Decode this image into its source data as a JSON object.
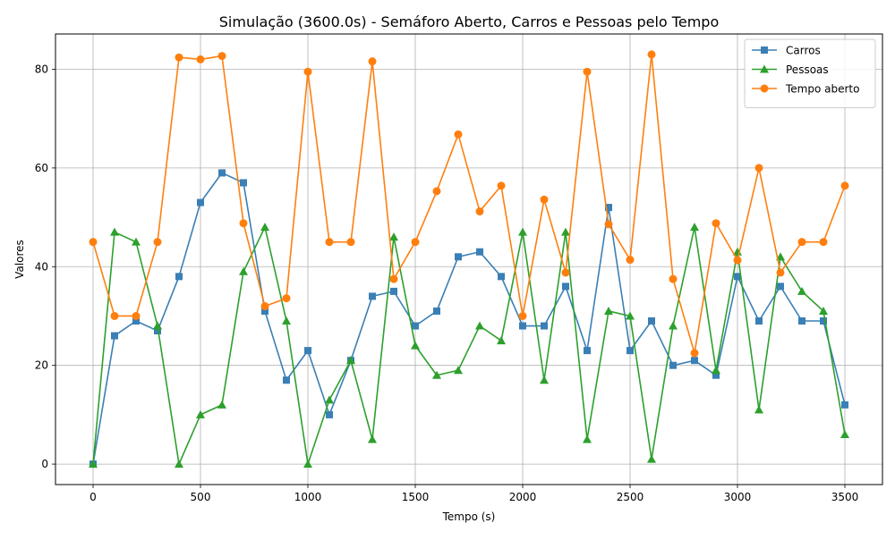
{
  "chart_data": {
    "type": "line",
    "title": "Simulação (3600.0s) - Semáforo Aberto, Carros e Pessoas pelo Tempo",
    "xlabel": "Tempo (s)",
    "ylabel": "Valores",
    "xlim": [
      -175,
      3675
    ],
    "ylim": [
      -4.15,
      87.15
    ],
    "xticks": [
      0,
      500,
      1000,
      1500,
      2000,
      2500,
      3000,
      3500
    ],
    "yticks": [
      0,
      20,
      40,
      60,
      80
    ],
    "grid": true,
    "legend_position": "top-right",
    "x": [
      0,
      100,
      200,
      300,
      400,
      500,
      600,
      700,
      800,
      900,
      1000,
      1100,
      1200,
      1300,
      1400,
      1500,
      1600,
      1700,
      1800,
      1900,
      2000,
      2100,
      2200,
      2300,
      2400,
      2500,
      2600,
      2700,
      2800,
      2900,
      3000,
      3100,
      3200,
      3300,
      3400,
      3500
    ],
    "series": [
      {
        "name": "Carros",
        "color": "#3a7fb5",
        "marker": "square",
        "values": [
          0,
          26,
          29,
          27,
          38,
          53,
          59,
          57,
          31,
          17,
          23,
          10,
          21,
          34,
          35,
          28,
          31,
          42,
          43,
          38,
          28,
          28,
          36,
          23,
          52,
          23,
          29,
          20,
          21,
          18,
          38,
          29,
          36,
          29,
          29,
          12
        ]
      },
      {
        "name": "Pessoas",
        "color": "#2ca02c",
        "marker": "triangle",
        "values": [
          0,
          47,
          45,
          28,
          0,
          10,
          12,
          39,
          48,
          29,
          0,
          13,
          21,
          5,
          46,
          24,
          18,
          19,
          28,
          25,
          47,
          17,
          47,
          5,
          31,
          30,
          1,
          28,
          48,
          19,
          43,
          11,
          42,
          35,
          31,
          6
        ]
      },
      {
        "name": "Tempo aberto",
        "color": "#ff7f0e",
        "marker": "circle",
        "values": [
          45,
          30,
          30,
          45,
          82.4,
          82,
          82.7,
          48.8,
          32,
          33.6,
          79.5,
          45,
          45,
          81.6,
          37.5,
          45,
          55.3,
          66.8,
          51.2,
          56.4,
          30,
          53.6,
          38.8,
          79.5,
          48.6,
          41.4,
          83,
          37.5,
          22.5,
          48.8,
          41.3,
          60,
          38.8,
          45,
          45,
          56.4
        ]
      }
    ]
  }
}
